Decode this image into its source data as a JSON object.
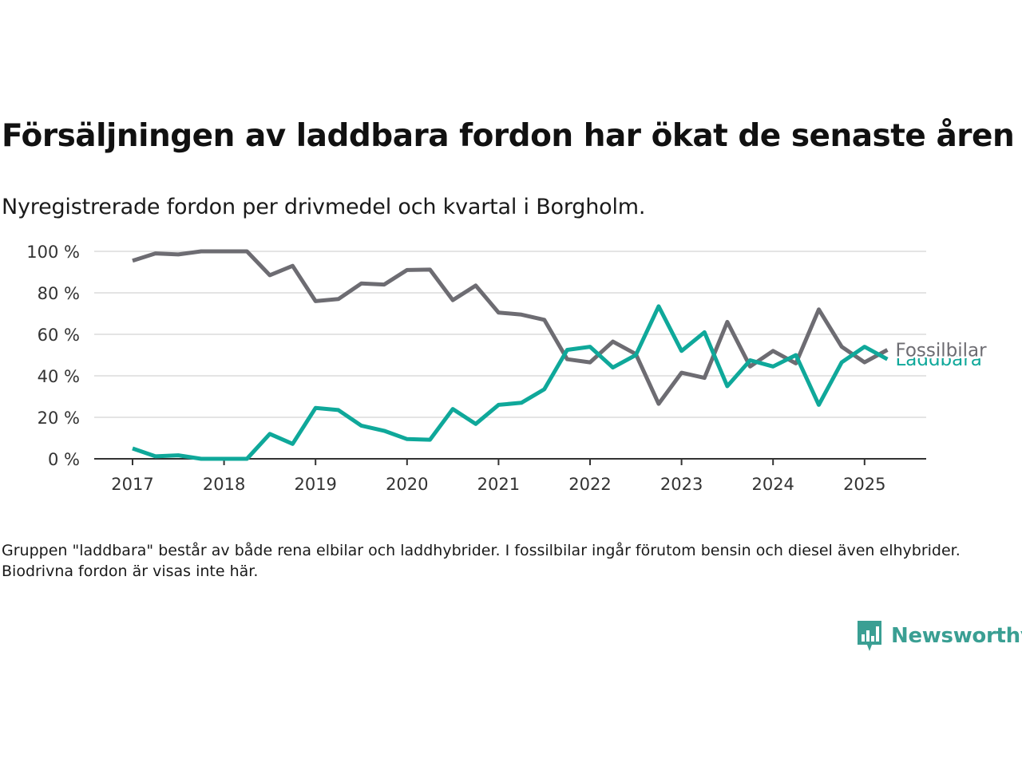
{
  "title": "Försäljningen av laddbara fordon har ökat de senaste åren",
  "subtitle": "Nyregistrerade fordon per drivmedel och kvartal i Borgholm.",
  "note": "Gruppen \"laddbara\" består av både rena elbilar och laddhybrider. I fossilbilar ingår förutom bensin och diesel även elhybrider. Biodrivna fordon är visas inte här.",
  "brand": {
    "name": "Newsworthy",
    "color": "#3a9f93",
    "icon": "newsworthy-logo-icon"
  },
  "chart_data": {
    "type": "line",
    "x": [
      "2017 Q1",
      "2017 Q2",
      "2017 Q3",
      "2017 Q4",
      "2018 Q1",
      "2018 Q2",
      "2018 Q3",
      "2018 Q4",
      "2019 Q1",
      "2019 Q2",
      "2019 Q3",
      "2019 Q4",
      "2020 Q1",
      "2020 Q2",
      "2020 Q3",
      "2020 Q4",
      "2021 Q1",
      "2021 Q2",
      "2021 Q3",
      "2021 Q4",
      "2022 Q1",
      "2022 Q2",
      "2022 Q3",
      "2022 Q4",
      "2023 Q1",
      "2023 Q2",
      "2023 Q3",
      "2023 Q4",
      "2024 Q1",
      "2024 Q2",
      "2024 Q3",
      "2024 Q4",
      "2025 Q1",
      "2025 Q2"
    ],
    "x_tick_labels": [
      "2017",
      "2018",
      "2019",
      "2020",
      "2021",
      "2022",
      "2023",
      "2024",
      "2025"
    ],
    "y_tick_labels": [
      "0 %",
      "20 %",
      "40 %",
      "60 %",
      "80 %",
      "100 %"
    ],
    "ylim": [
      0,
      100
    ],
    "grid": "horizontal",
    "legend": "line-end labels",
    "series": [
      {
        "name": "Fossilbilar",
        "color": "#6d6c72",
        "values": [
          95.5,
          99,
          98.5,
          100,
          100,
          100,
          88.5,
          93,
          76,
          77,
          84.5,
          84,
          91,
          91.2,
          76.5,
          83.5,
          70.5,
          69.5,
          67,
          48,
          46.5,
          56.5,
          50.5,
          26.5,
          41.5,
          39,
          66,
          44.5,
          52,
          46,
          72,
          54,
          46.5,
          52.5
        ]
      },
      {
        "name": "Laddbara",
        "color": "#0fa89a",
        "values": [
          5,
          1.2,
          1.7,
          0,
          0,
          0,
          12,
          7.2,
          24.5,
          23.5,
          16,
          13.5,
          9.5,
          9.2,
          24,
          16.8,
          26,
          27,
          33.5,
          52.5,
          54,
          44,
          50,
          73.5,
          52,
          61,
          35,
          47.5,
          44.5,
          50,
          26,
          46.5,
          54,
          48
        ]
      }
    ]
  }
}
